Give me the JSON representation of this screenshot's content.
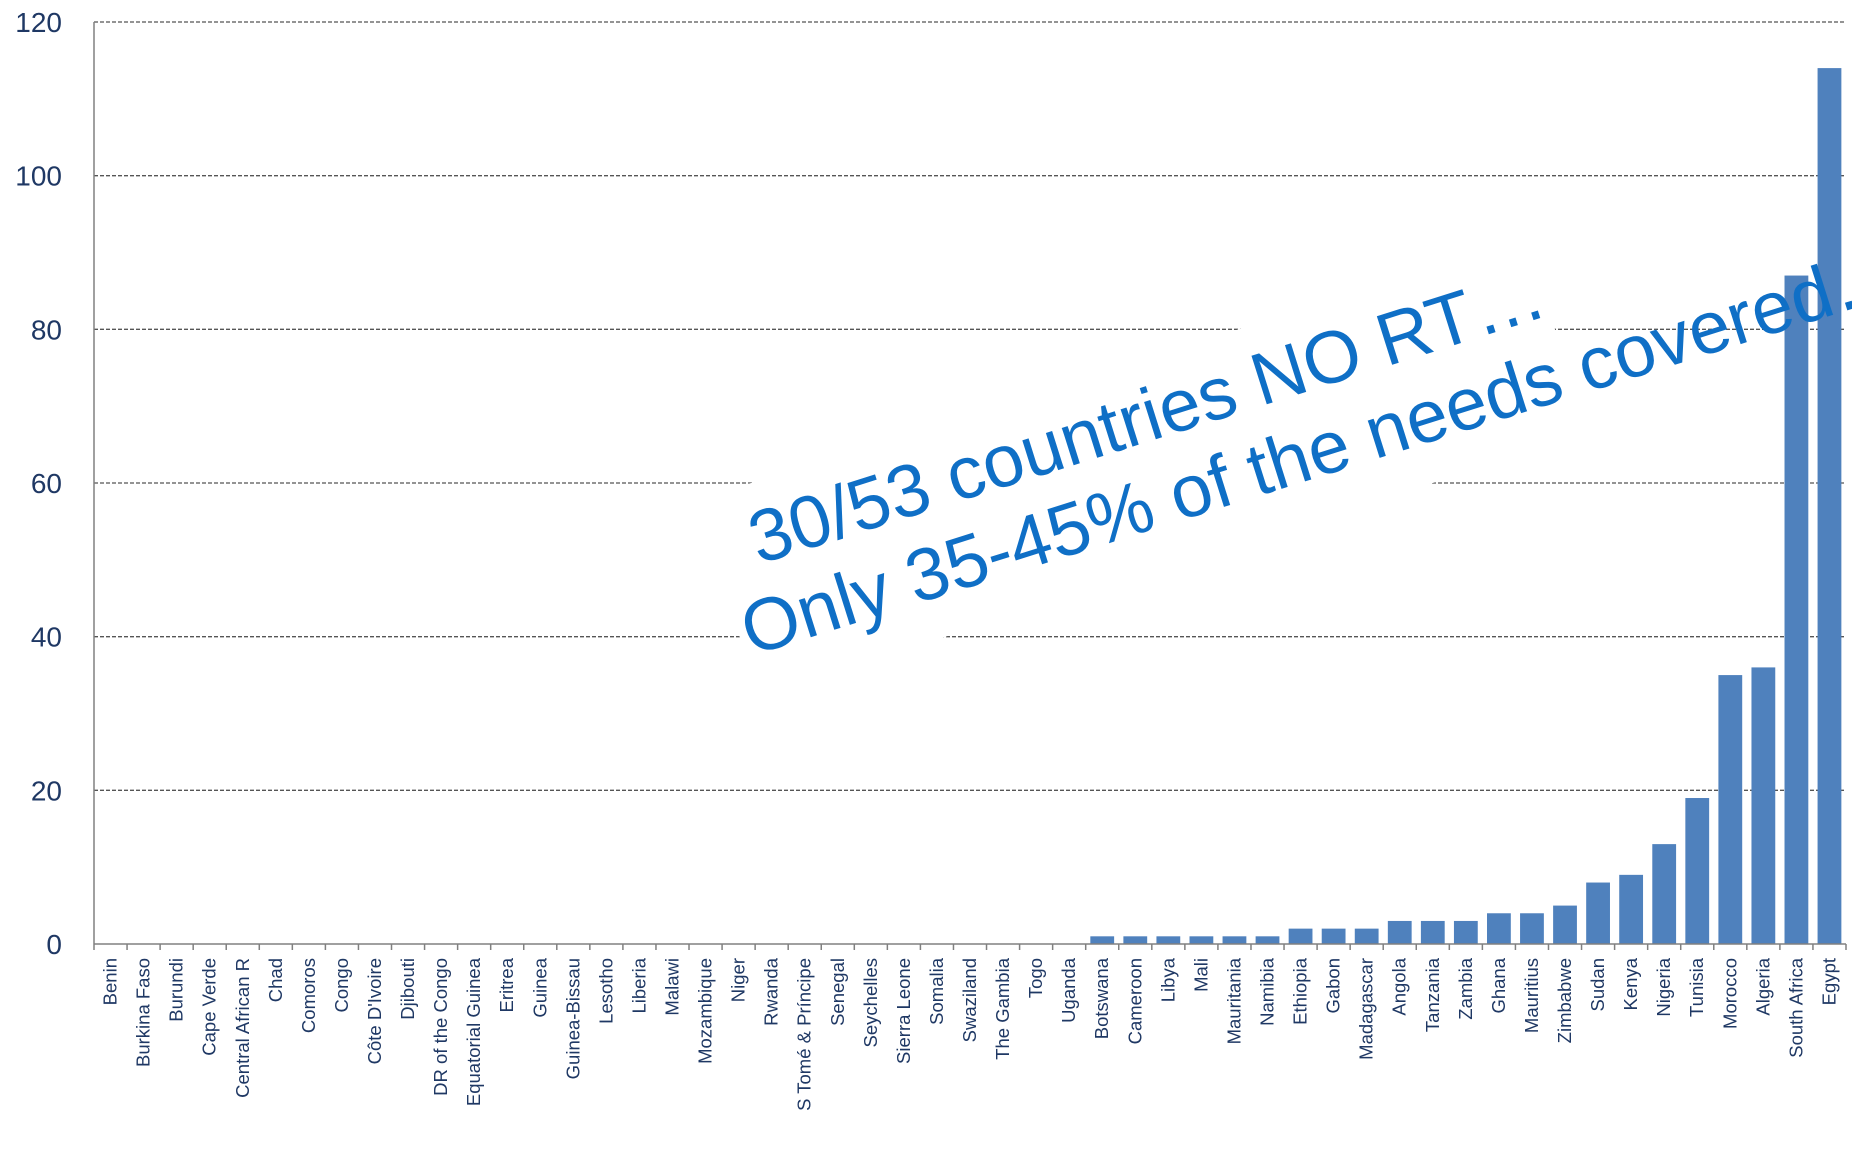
{
  "chart_data": {
    "type": "bar",
    "title": "",
    "xlabel": "",
    "ylabel": "",
    "ylim": [
      0,
      120
    ],
    "yticks": [
      0,
      20,
      40,
      60,
      80,
      100,
      120
    ],
    "grid": true,
    "bar_color": "#4f81bd",
    "categories": [
      "Benin",
      "Burkina Faso",
      "Burundi",
      "Cape Verde",
      "Central African R",
      "Chad",
      "Comoros",
      "Congo",
      "Côte D'Ivoire",
      "Djibouti",
      "DR of the Congo",
      "Equatorial Guinea",
      "Eritrea",
      "Guinea",
      "Guinea-Bissau",
      "Lesotho",
      "Liberia",
      "Malawi",
      "Mozambique",
      "Niger",
      "Rwanda",
      "S Tomé & Príncipe",
      "Senegal",
      "Seychelles",
      "Sierra Leone",
      "Somalia",
      "Swaziland",
      "The Gambia",
      "Togo",
      "Uganda",
      "Botswana",
      "Cameroon",
      "Libya",
      "Mali",
      "Mauritania",
      "Namibia",
      "Ethiopia",
      "Gabon",
      "Madagascar",
      "Angola",
      "Tanzania",
      "Zambia",
      "Ghana",
      "Mauritius",
      "Zimbabwe",
      "Sudan",
      "Kenya",
      "Nigeria",
      "Tunisia",
      "Morocco",
      "Algeria",
      "South Africa",
      "Egypt"
    ],
    "values": [
      0,
      0,
      0,
      0,
      0,
      0,
      0,
      0,
      0,
      0,
      0,
      0,
      0,
      0,
      0,
      0,
      0,
      0,
      0,
      0,
      0,
      0,
      0,
      0,
      0,
      0,
      0,
      0,
      0,
      0,
      1,
      1,
      1,
      1,
      1,
      1,
      2,
      2,
      2,
      3,
      3,
      3,
      4,
      4,
      5,
      8,
      9,
      13,
      19,
      35,
      36,
      87,
      114
    ],
    "annotations": [
      "30/53 countries NO RT…",
      "Only 35-45% of the needs covered…"
    ],
    "annotation_color": "#0f6fc6"
  }
}
